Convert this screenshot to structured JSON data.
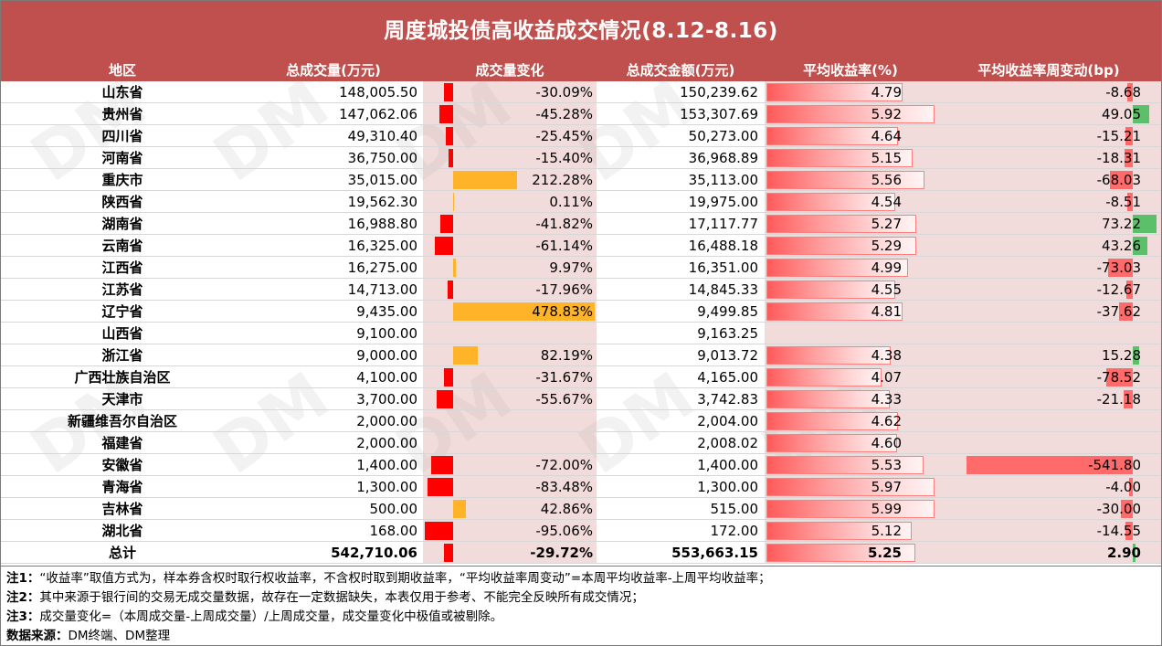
{
  "title": "周度城投债高收益成交情况(8.12-8.16)",
  "headers": {
    "region": "地区",
    "volume": "总成交量(万元)",
    "change": "成交量变化",
    "amount": "总成交金额(万元)",
    "yield": "平均收益率(%)",
    "delta": "平均收益率周变动(bp)"
  },
  "rows": [
    {
      "region": "山东省",
      "volume": "148,005.50",
      "change": "-30.09%",
      "change_value": -30.09,
      "amount": "150,239.62",
      "yield": "4.79",
      "yield_value": 4.79,
      "delta": "-8.68",
      "delta_value": -8.68
    },
    {
      "region": "贵州省",
      "volume": "147,062.06",
      "change": "-45.28%",
      "change_value": -45.28,
      "amount": "153,307.69",
      "yield": "5.92",
      "yield_value": 5.92,
      "delta": "49.05",
      "delta_value": 49.05
    },
    {
      "region": "四川省",
      "volume": "49,310.40",
      "change": "-25.45%",
      "change_value": -25.45,
      "amount": "50,273.00",
      "yield": "4.64",
      "yield_value": 4.64,
      "delta": "-15.21",
      "delta_value": -15.21
    },
    {
      "region": "河南省",
      "volume": "36,750.00",
      "change": "-15.40%",
      "change_value": -15.4,
      "amount": "36,968.89",
      "yield": "5.15",
      "yield_value": 5.15,
      "delta": "-18.31",
      "delta_value": -18.31
    },
    {
      "region": "重庆市",
      "volume": "35,015.00",
      "change": "212.28%",
      "change_value": 212.28,
      "amount": "35,113.00",
      "yield": "5.56",
      "yield_value": 5.56,
      "delta": "-68.03",
      "delta_value": -68.03
    },
    {
      "region": "陕西省",
      "volume": "19,562.30",
      "change": "0.11%",
      "change_value": 0.11,
      "amount": "19,975.00",
      "yield": "4.54",
      "yield_value": 4.54,
      "delta": "-8.51",
      "delta_value": -8.51
    },
    {
      "region": "湖南省",
      "volume": "16,988.80",
      "change": "-41.82%",
      "change_value": -41.82,
      "amount": "17,117.77",
      "yield": "5.27",
      "yield_value": 5.27,
      "delta": "73.22",
      "delta_value": 73.22
    },
    {
      "region": "云南省",
      "volume": "16,325.00",
      "change": "-61.14%",
      "change_value": -61.14,
      "amount": "16,488.18",
      "yield": "5.29",
      "yield_value": 5.29,
      "delta": "43.26",
      "delta_value": 43.26
    },
    {
      "region": "江西省",
      "volume": "16,275.00",
      "change": "9.97%",
      "change_value": 9.97,
      "amount": "16,351.00",
      "yield": "4.99",
      "yield_value": 4.99,
      "delta": "-73.03",
      "delta_value": -73.03
    },
    {
      "region": "江苏省",
      "volume": "14,713.00",
      "change": "-17.96%",
      "change_value": -17.96,
      "amount": "14,845.33",
      "yield": "4.55",
      "yield_value": 4.55,
      "delta": "-12.67",
      "delta_value": -12.67
    },
    {
      "region": "辽宁省",
      "volume": "9,435.00",
      "change": "478.83%",
      "change_value": 478.83,
      "amount": "9,499.85",
      "yield": "4.81",
      "yield_value": 4.81,
      "delta": "-37.62",
      "delta_value": -37.62
    },
    {
      "region": "山西省",
      "volume": "9,100.00",
      "change": "",
      "change_value": null,
      "amount": "9,163.25",
      "yield": "",
      "yield_value": null,
      "delta": "",
      "delta_value": null
    },
    {
      "region": "浙江省",
      "volume": "9,000.00",
      "change": "82.19%",
      "change_value": 82.19,
      "amount": "9,013.72",
      "yield": "4.38",
      "yield_value": 4.38,
      "delta": "15.28",
      "delta_value": 15.28
    },
    {
      "region": "广西壮族自治区",
      "volume": "4,100.00",
      "change": "-31.67%",
      "change_value": -31.67,
      "amount": "4,165.00",
      "yield": "4.07",
      "yield_value": 4.07,
      "delta": "-78.52",
      "delta_value": -78.52
    },
    {
      "region": "天津市",
      "volume": "3,700.00",
      "change": "-55.67%",
      "change_value": -55.67,
      "amount": "3,742.83",
      "yield": "4.33",
      "yield_value": 4.33,
      "delta": "-21.18",
      "delta_value": -21.18
    },
    {
      "region": "新疆维吾尔自治区",
      "volume": "2,000.00",
      "change": "",
      "change_value": null,
      "amount": "2,004.00",
      "yield": "4.62",
      "yield_value": 4.62,
      "delta": "",
      "delta_value": null
    },
    {
      "region": "福建省",
      "volume": "2,000.00",
      "change": "",
      "change_value": null,
      "amount": "2,008.02",
      "yield": "4.60",
      "yield_value": 4.6,
      "delta": "",
      "delta_value": null
    },
    {
      "region": "安徽省",
      "volume": "1,400.00",
      "change": "-72.00%",
      "change_value": -72.0,
      "amount": "1,400.00",
      "yield": "5.53",
      "yield_value": 5.53,
      "delta": "-541.80",
      "delta_value": -541.8
    },
    {
      "region": "青海省",
      "volume": "1,300.00",
      "change": "-83.48%",
      "change_value": -83.48,
      "amount": "1,300.00",
      "yield": "5.97",
      "yield_value": 5.97,
      "delta": "-4.00",
      "delta_value": -4.0
    },
    {
      "region": "吉林省",
      "volume": "500.00",
      "change": "42.86%",
      "change_value": 42.86,
      "amount": "515.00",
      "yield": "5.99",
      "yield_value": 5.99,
      "delta": "-30.00",
      "delta_value": -30.0
    },
    {
      "region": "湖北省",
      "volume": "168.00",
      "change": "-95.06%",
      "change_value": -95.06,
      "amount": "172.00",
      "yield": "5.12",
      "yield_value": 5.12,
      "delta": "-14.55",
      "delta_value": -14.55
    }
  ],
  "total": {
    "region": "总计",
    "volume": "542,710.06",
    "change": "-29.72%",
    "change_value": -29.72,
    "amount": "553,663.15",
    "yield": "5.25",
    "yield_value": 5.25,
    "delta": "2.90",
    "delta_value": 2.9
  },
  "notes": [
    {
      "label": "注1：",
      "text": "“收益率”取值方式为，样本券含权时取行权收益率，不含权时取到期收益率，“平均收益率周变动”=本周平均收益率-上周平均收益率；"
    },
    {
      "label": "注2：",
      "text": "其中来源于银行间的交易无成交量数据，故存在一定数据缺失，本表仅用于参考、不能完全反映所有成交情况；"
    },
    {
      "label": "注3：",
      "text": "成交量变化=（本周成交量-上周成交量）/上周成交量，成交量变化中极值或被剔除。"
    },
    {
      "label": "数据来源：",
      "text": "DM终端、DM整理"
    }
  ],
  "colors": {
    "header_bg": "#c0504d",
    "band": "#f2dcdb",
    "neg_bar": "#ff0000",
    "pos_bar": "#ffb328",
    "delta_neg": "#ff6b6b",
    "delta_pos": "#5cc06a"
  },
  "watermark": "DM"
}
